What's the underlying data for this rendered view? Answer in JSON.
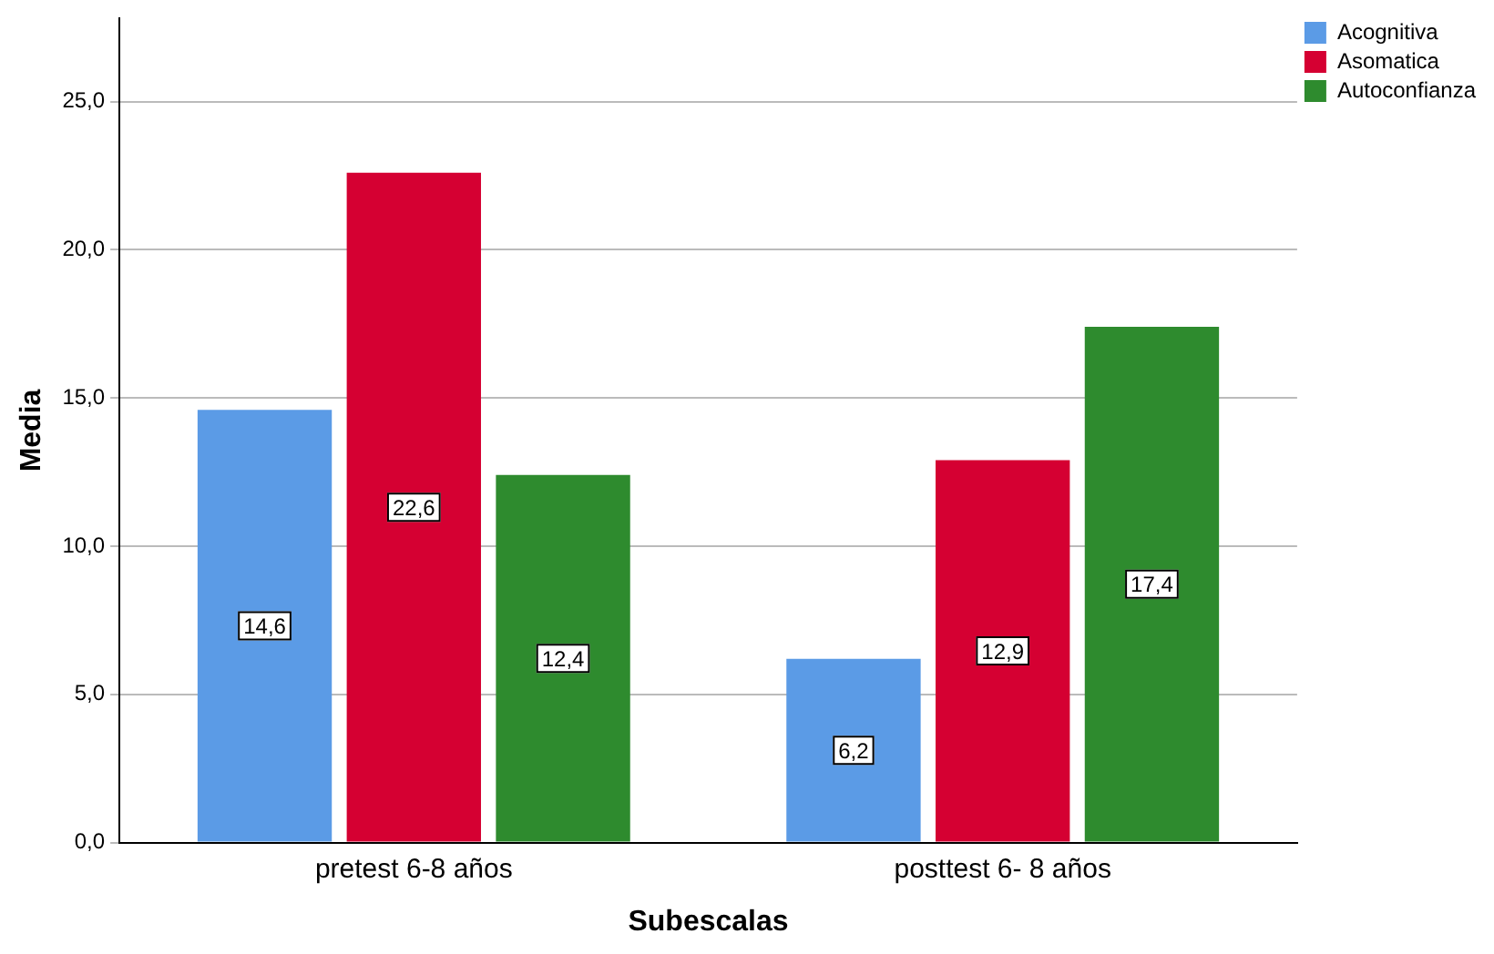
{
  "chart_data": {
    "type": "bar",
    "xlabel": "Subescalas",
    "ylabel": "Media",
    "categories": [
      "pretest 6-8 años",
      "posttest 6- 8 años"
    ],
    "series": [
      {
        "name": "Acognitiva",
        "color": "#5b9be6",
        "values": [
          14.6,
          6.2
        ],
        "value_labels": [
          "14,6",
          "6,2"
        ]
      },
      {
        "name": "Asomatica",
        "color": "#d50032",
        "values": [
          22.6,
          12.9
        ],
        "value_labels": [
          "22,6",
          "12,9"
        ]
      },
      {
        "name": "Autoconfianza",
        "color": "#2e8b2e",
        "values": [
          12.4,
          17.4
        ],
        "value_labels": [
          "12,4",
          "17,4"
        ]
      }
    ],
    "ylim": [
      0,
      27.8
    ],
    "yticks": [
      {
        "value": 0,
        "label": "0,0"
      },
      {
        "value": 5,
        "label": "5,0"
      },
      {
        "value": 10,
        "label": "10,0"
      },
      {
        "value": 15,
        "label": "15,0"
      },
      {
        "value": 20,
        "label": "20,0"
      },
      {
        "value": 25,
        "label": "25,0"
      }
    ],
    "grid": "y",
    "legend": "top right"
  }
}
